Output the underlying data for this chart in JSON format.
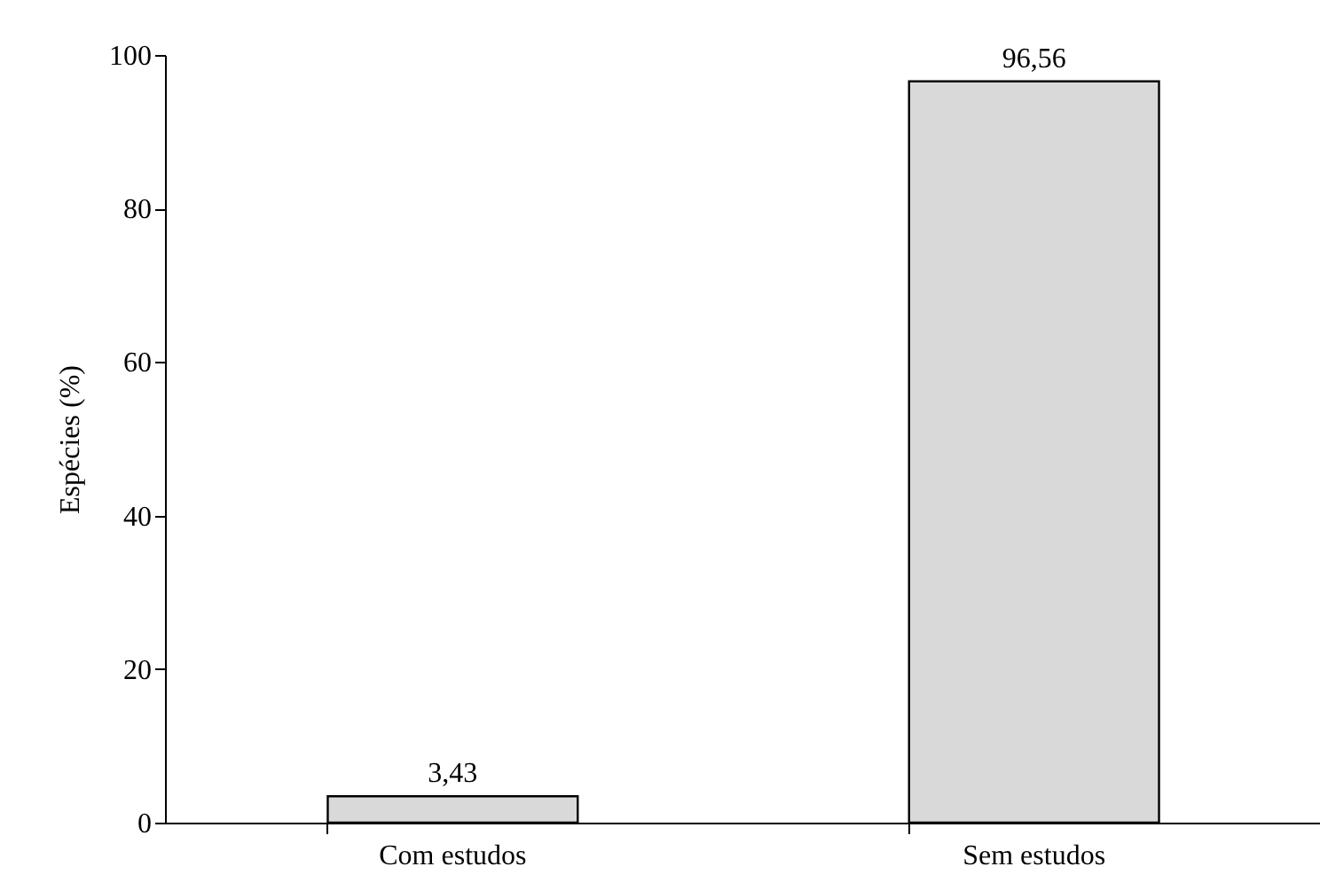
{
  "chart_data": {
    "type": "bar",
    "ylabel": "Espécies (%)",
    "categories": [
      "Com estudos",
      "Sem estudos"
    ],
    "values": [
      3.43,
      96.56
    ],
    "value_labels": [
      "3,43",
      "96,56"
    ],
    "color": "#d9d9d9",
    "ylim": [
      0,
      100
    ],
    "yticks": [
      0,
      20,
      40,
      60,
      80,
      100
    ]
  }
}
